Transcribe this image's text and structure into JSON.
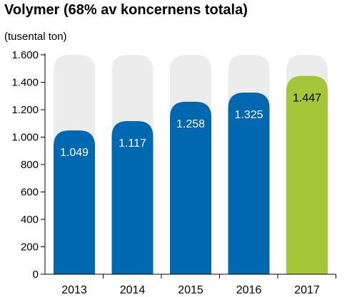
{
  "chart_data": {
    "type": "bar",
    "title": "Volymer (68% av koncernens totala)",
    "unit_label": "(tusental ton)",
    "categories": [
      "2013",
      "2014",
      "2015",
      "2016",
      "2017"
    ],
    "values": [
      1049,
      1117,
      1258,
      1325,
      1447
    ],
    "value_labels": [
      "1.049",
      "1.117",
      "1.258",
      "1.325",
      "1.447"
    ],
    "ylim": [
      0,
      1600
    ],
    "yticks": [
      0,
      200,
      400,
      600,
      800,
      1000,
      1200,
      1400,
      1600
    ],
    "ytick_labels": [
      "0",
      "200",
      "400",
      "600",
      "800",
      "1.000",
      "1.200",
      "1.400",
      "1.600"
    ],
    "colors": {
      "bar": "#0067b1",
      "highlight_bar": "#a4c639",
      "background_bar": "#ececec",
      "label_on_bar": "#ffffff",
      "label_on_highlight": "#000000"
    },
    "highlight_index": 4,
    "grid": false
  }
}
